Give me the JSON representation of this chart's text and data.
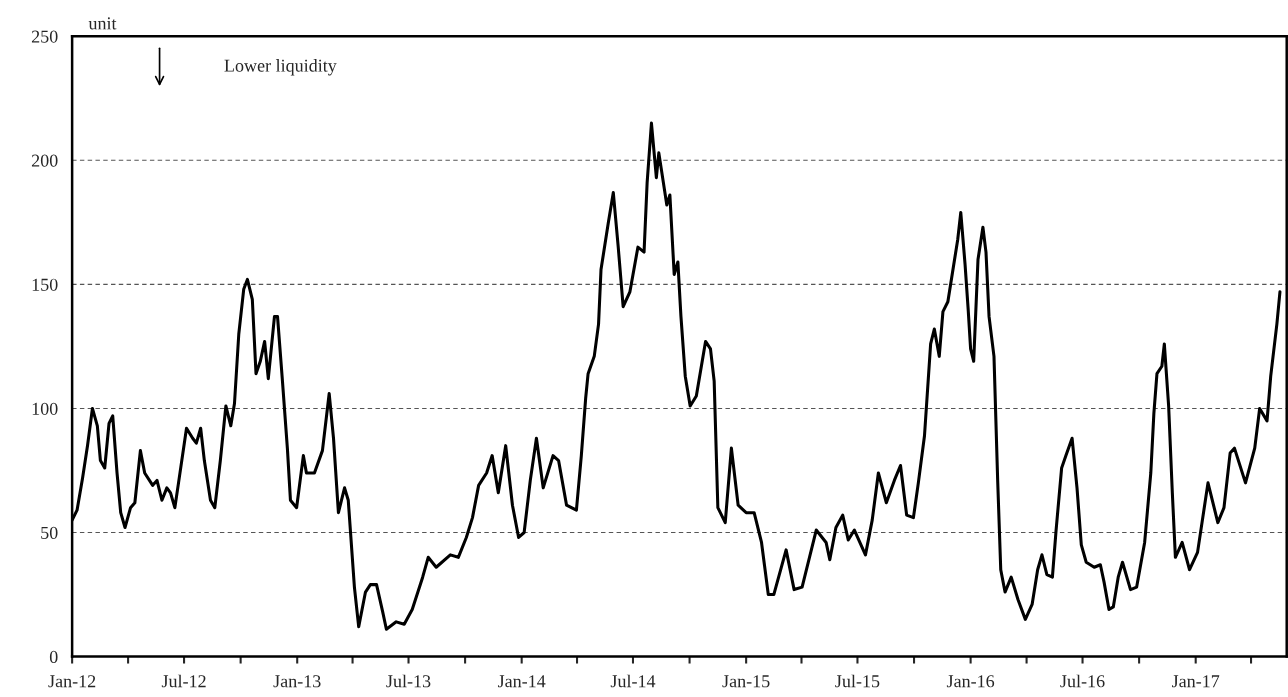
{
  "chart_data": {
    "type": "line",
    "ylabel": "unit",
    "annotations": [
      "Lower liquidity"
    ],
    "x": [
      "2012-01-01",
      "2012-01-09",
      "2012-01-18",
      "2012-01-26",
      "2012-02-03",
      "2012-02-11",
      "2012-02-16",
      "2012-02-23",
      "2012-03-01",
      "2012-03-07",
      "2012-03-14",
      "2012-03-20",
      "2012-03-27",
      "2012-04-05",
      "2012-04-12",
      "2012-04-21",
      "2012-04-28",
      "2012-05-11",
      "2012-05-18",
      "2012-05-26",
      "2012-06-03",
      "2012-06-09",
      "2012-06-16",
      "2012-06-22",
      "2012-07-05",
      "2012-07-15",
      "2012-07-21",
      "2012-07-28",
      "2012-08-03",
      "2012-08-13",
      "2012-08-20",
      "2012-08-29",
      "2012-09-07",
      "2012-09-15",
      "2012-09-21",
      "2012-09-28",
      "2012-10-06",
      "2012-10-12",
      "2012-10-20",
      "2012-10-26",
      "2012-11-02",
      "2012-11-09",
      "2012-11-15",
      "2012-11-25",
      "2012-11-30",
      "2012-12-08",
      "2012-12-16",
      "2012-12-21",
      "2012-12-31",
      "2013-01-11",
      "2013-01-16",
      "2013-01-29",
      "2013-02-11",
      "2013-02-22",
      "2013-03-01",
      "2013-03-09",
      "2013-03-19",
      "2013-03-25",
      "2013-04-04",
      "2013-04-11",
      "2013-04-22",
      "2013-04-30",
      "2013-05-10",
      "2013-05-20",
      "2013-05-26",
      "2013-06-11",
      "2013-06-24",
      "2013-07-07",
      "2013-07-24",
      "2013-08-02",
      "2013-08-15",
      "2013-09-07",
      "2013-09-20",
      "2013-10-03",
      "2013-10-13",
      "2013-10-23",
      "2013-11-05",
      "2013-11-14",
      "2013-11-24",
      "2013-12-06",
      "2013-12-17",
      "2013-12-27",
      "2014-01-05",
      "2014-01-15",
      "2014-01-25",
      "2014-02-05",
      "2014-02-21",
      "2014-03-02",
      "2014-03-15",
      "2014-03-31",
      "2014-04-08",
      "2014-04-15",
      "2014-04-19",
      "2014-04-29",
      "2014-05-06",
      "2014-05-10",
      "2014-05-22",
      "2014-05-30",
      "2014-06-07",
      "2014-06-15",
      "2014-06-26",
      "2014-07-09",
      "2014-07-19",
      "2014-07-24",
      "2014-07-31",
      "2014-08-08",
      "2014-08-12",
      "2014-08-25",
      "2014-08-30",
      "2014-09-06",
      "2014-09-12",
      "2014-09-17",
      "2014-09-24",
      "2014-10-02",
      "2014-10-12",
      "2014-10-27",
      "2014-11-04",
      "2014-11-10",
      "2014-11-16",
      "2014-11-28",
      "2014-12-08",
      "2014-12-19",
      "2015-01-01",
      "2015-01-14",
      "2015-01-26",
      "2015-02-06",
      "2015-02-15",
      "2015-03-07",
      "2015-03-20",
      "2015-04-02",
      "2015-04-25",
      "2015-05-11",
      "2015-05-17",
      "2015-05-27",
      "2015-06-07",
      "2015-06-16",
      "2015-06-26",
      "2015-07-14",
      "2015-07-25",
      "2015-08-04",
      "2015-08-17",
      "2015-08-30",
      "2015-09-09",
      "2015-09-19",
      "2015-09-30",
      "2015-10-08",
      "2015-10-18",
      "2015-10-28",
      "2015-11-03",
      "2015-11-11",
      "2015-11-17",
      "2015-11-25",
      "2015-12-11",
      "2015-12-16",
      "2015-12-23",
      "2015-12-28",
      "2016-01-01",
      "2016-01-06",
      "2016-01-13",
      "2016-01-21",
      "2016-01-26",
      "2016-01-31",
      "2016-02-08",
      "2016-02-14",
      "2016-02-19",
      "2016-02-26",
      "2016-03-07",
      "2016-03-18",
      "2016-03-30",
      "2016-04-10",
      "2016-04-19",
      "2016-04-26",
      "2016-05-04",
      "2016-05-13",
      "2016-05-19",
      "2016-05-28",
      "2016-06-04",
      "2016-06-14",
      "2016-06-22",
      "2016-06-29",
      "2016-07-07",
      "2016-07-20",
      "2016-07-30",
      "2016-08-05",
      "2016-08-13",
      "2016-08-20",
      "2016-08-28",
      "2016-09-04",
      "2016-09-17",
      "2016-09-27",
      "2016-10-10",
      "2016-10-20",
      "2016-10-25",
      "2016-10-30",
      "2016-11-07",
      "2016-11-11",
      "2016-11-18",
      "2016-11-24",
      "2016-11-29",
      "2016-12-10",
      "2016-12-22",
      "2017-01-04",
      "2017-01-21",
      "2017-02-06",
      "2017-02-16",
      "2017-02-26",
      "2017-03-05",
      "2017-03-23",
      "2017-04-07",
      "2017-04-15",
      "2017-04-27",
      "2017-05-03",
      "2017-05-13",
      "2017-05-18"
    ],
    "series": [
      {
        "color": "#000000",
        "values": [
          55,
          59,
          72,
          85,
          100,
          93,
          79,
          76,
          94,
          97,
          74,
          58,
          52,
          60,
          62,
          83,
          74,
          69,
          71,
          63,
          68,
          66,
          60,
          70,
          92,
          88,
          86,
          92,
          79,
          63,
          60,
          79,
          101,
          93,
          102,
          130,
          148,
          152,
          144,
          114,
          119,
          127,
          112,
          137,
          137,
          111,
          84,
          63,
          60,
          81,
          74,
          74,
          83,
          106,
          88,
          58,
          68,
          63,
          28,
          12,
          26,
          29,
          29,
          18,
          11,
          14,
          13,
          19,
          32,
          40,
          36,
          41,
          40,
          48,
          56,
          69,
          74,
          81,
          66,
          85,
          61,
          48,
          50,
          71,
          88,
          68,
          81,
          79,
          61,
          59,
          81,
          104,
          114,
          121,
          134,
          156,
          175,
          187,
          165,
          141,
          147,
          165,
          163,
          191,
          215,
          193,
          203,
          182,
          186,
          154,
          159,
          137,
          113,
          101,
          105,
          127,
          124,
          111,
          60,
          54,
          84,
          61,
          58,
          58,
          46,
          25,
          25,
          43,
          27,
          28,
          51,
          46,
          39,
          52,
          57,
          47,
          51,
          41,
          55,
          74,
          62,
          71,
          77,
          57,
          56,
          70,
          89,
          126,
          132,
          121,
          139,
          143,
          168,
          179,
          158,
          140,
          124,
          119,
          160,
          173,
          163,
          137,
          121,
          71,
          35,
          26,
          32,
          23,
          15,
          21,
          35,
          41,
          33,
          32,
          51,
          76,
          81,
          88,
          68,
          45,
          38,
          36,
          37,
          30,
          19,
          20,
          32,
          38,
          27,
          28,
          46,
          74,
          98,
          114,
          117,
          126,
          101,
          66,
          40,
          46,
          35,
          42,
          70,
          54,
          60,
          82,
          84,
          70,
          84,
          100,
          95,
          113,
          134,
          147
        ]
      }
    ],
    "xlim": [
      "2012-01-01",
      "2017-05-29"
    ],
    "xticks": [
      {
        "value": "2012-01-01",
        "label": "Jan-12"
      },
      {
        "value": "2012-04-01",
        "label": null
      },
      {
        "value": "2012-07-01",
        "label": "Jul-12"
      },
      {
        "value": "2012-10-01",
        "label": null
      },
      {
        "value": "2013-01-01",
        "label": "Jan-13"
      },
      {
        "value": "2013-04-01",
        "label": null
      },
      {
        "value": "2013-07-01",
        "label": "Jul-13"
      },
      {
        "value": "2013-10-01",
        "label": null
      },
      {
        "value": "2014-01-01",
        "label": "Jan-14"
      },
      {
        "value": "2014-04-01",
        "label": null
      },
      {
        "value": "2014-07-01",
        "label": "Jul-14"
      },
      {
        "value": "2014-10-01",
        "label": null
      },
      {
        "value": "2015-01-01",
        "label": "Jan-15"
      },
      {
        "value": "2015-04-01",
        "label": null
      },
      {
        "value": "2015-07-01",
        "label": "Jul-15"
      },
      {
        "value": "2015-10-01",
        "label": null
      },
      {
        "value": "2016-01-01",
        "label": "Jan-16"
      },
      {
        "value": "2016-04-01",
        "label": null
      },
      {
        "value": "2016-07-01",
        "label": "Jul-16"
      },
      {
        "value": "2016-10-01",
        "label": null
      },
      {
        "value": "2017-01-01",
        "label": "Jan-17"
      },
      {
        "value": "2017-04-01",
        "label": null
      }
    ],
    "ylim": [
      0,
      250
    ],
    "yticks": [
      0,
      50,
      100,
      150,
      200,
      250
    ],
    "grid": "y",
    "line_style": "solid",
    "marker": "none"
  }
}
